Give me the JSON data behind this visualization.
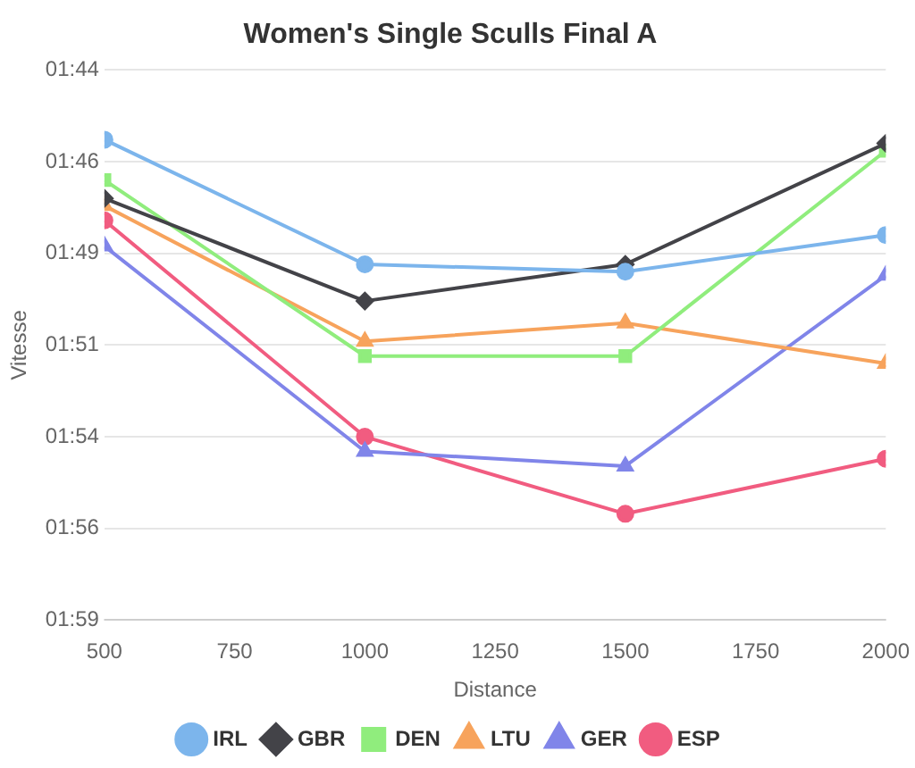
{
  "chart_data": {
    "type": "line",
    "title": "Women's Single Sculls Final A",
    "xlabel": "Distance",
    "ylabel": "Vitesse",
    "x": [
      500,
      1000,
      1500,
      2000
    ],
    "xlim": [
      500,
      2000
    ],
    "xticks": [
      500,
      750,
      1000,
      1250,
      1500,
      1750,
      2000
    ],
    "ylim": [
      119,
      104
    ],
    "yticks": [
      {
        "value": 104,
        "label": "01:44"
      },
      {
        "value": 106.5,
        "label": "01:46"
      },
      {
        "value": 109,
        "label": "01:49"
      },
      {
        "value": 111.5,
        "label": "01:51"
      },
      {
        "value": 114,
        "label": "01:54"
      },
      {
        "value": 116.5,
        "label": "01:56"
      },
      {
        "value": 119,
        "label": "01:59"
      }
    ],
    "grid": "y",
    "legend": "bottom",
    "line_style": "solid",
    "series": [
      {
        "name": "IRL",
        "color": "#7cb5ec",
        "marker": "circle",
        "values": [
          105.9,
          109.3,
          109.5,
          108.5
        ]
      },
      {
        "name": "GBR",
        "color": "#434348",
        "marker": "diamond",
        "values": [
          107.5,
          110.3,
          109.3,
          106.0
        ]
      },
      {
        "name": "DEN",
        "color": "#90ed7d",
        "marker": "square",
        "values": [
          107.0,
          111.8,
          111.8,
          106.2
        ]
      },
      {
        "name": "LTU",
        "color": "#f7a35c",
        "marker": "triangle",
        "values": [
          107.7,
          111.4,
          110.9,
          112.0
        ]
      },
      {
        "name": "GER",
        "color": "#8085e9",
        "marker": "triangle",
        "values": [
          108.8,
          114.4,
          114.8,
          109.6
        ]
      },
      {
        "name": "ESP",
        "color": "#f15c80",
        "marker": "circle",
        "values": [
          108.1,
          114.0,
          116.1,
          114.6
        ]
      }
    ]
  }
}
